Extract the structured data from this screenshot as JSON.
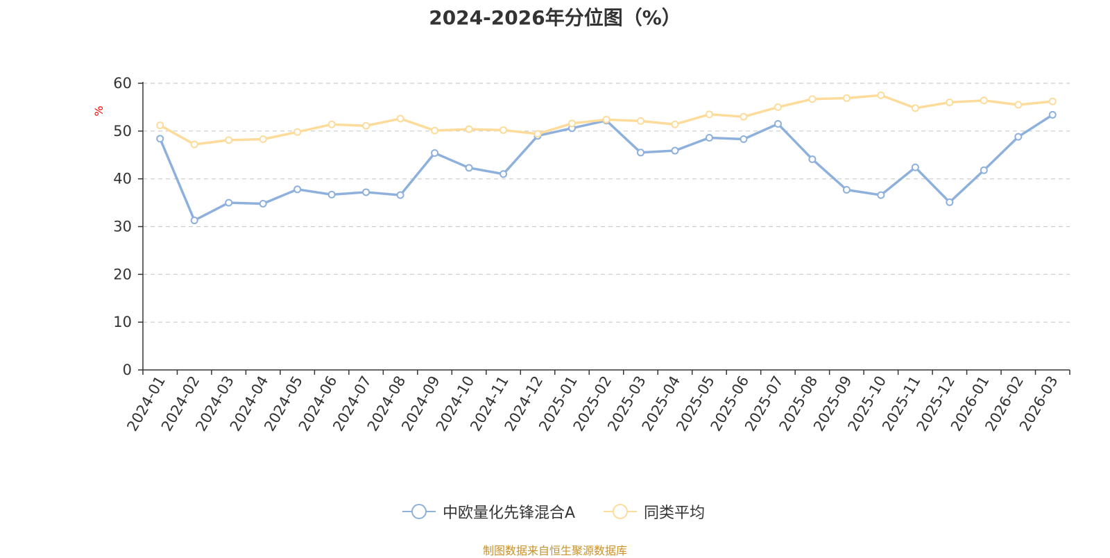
{
  "chart_data": {
    "type": "line",
    "title": "2024-2026年分位图（%）",
    "ylabel": "%",
    "xlabel": "",
    "ylim": [
      0,
      60
    ],
    "yticks": [
      0,
      10,
      20,
      30,
      40,
      50,
      60
    ],
    "grid": true,
    "legend_position": "bottom-center",
    "categories": [
      "2024-01",
      "2024-02",
      "2024-03",
      "2024-04",
      "2024-05",
      "2024-06",
      "2024-07",
      "2024-08",
      "2024-09",
      "2024-10",
      "2024-11",
      "2024-12",
      "2025-01",
      "2025-02",
      "2025-03",
      "2025-04",
      "2025-05",
      "2025-06",
      "2025-07",
      "2025-08",
      "2025-09",
      "2025-10",
      "2025-11",
      "2025-12",
      "2026-01",
      "2026-02",
      "2026-03"
    ],
    "series": [
      {
        "name": "中欧量化先锋混合A",
        "color": "#8eb0dc",
        "values": [
          48.4,
          31.3,
          35.0,
          34.8,
          37.8,
          36.7,
          37.2,
          36.6,
          45.4,
          42.3,
          41.0,
          49.0,
          50.6,
          52.2,
          45.5,
          45.9,
          48.6,
          48.3,
          51.5,
          44.1,
          37.7,
          36.6,
          42.4,
          35.1,
          41.8,
          48.8,
          53.4
        ]
      },
      {
        "name": "同类平均",
        "color": "#fddc9b",
        "values": [
          51.2,
          47.2,
          48.1,
          48.3,
          49.8,
          51.4,
          51.1,
          52.6,
          50.1,
          50.4,
          50.2,
          49.4,
          51.6,
          52.4,
          52.1,
          51.4,
          53.5,
          53.0,
          55.0,
          56.7,
          56.9,
          57.5,
          54.8,
          56.0,
          56.4,
          55.5,
          56.2
        ]
      }
    ],
    "source_note": "制图数据来自恒生聚源数据库"
  }
}
